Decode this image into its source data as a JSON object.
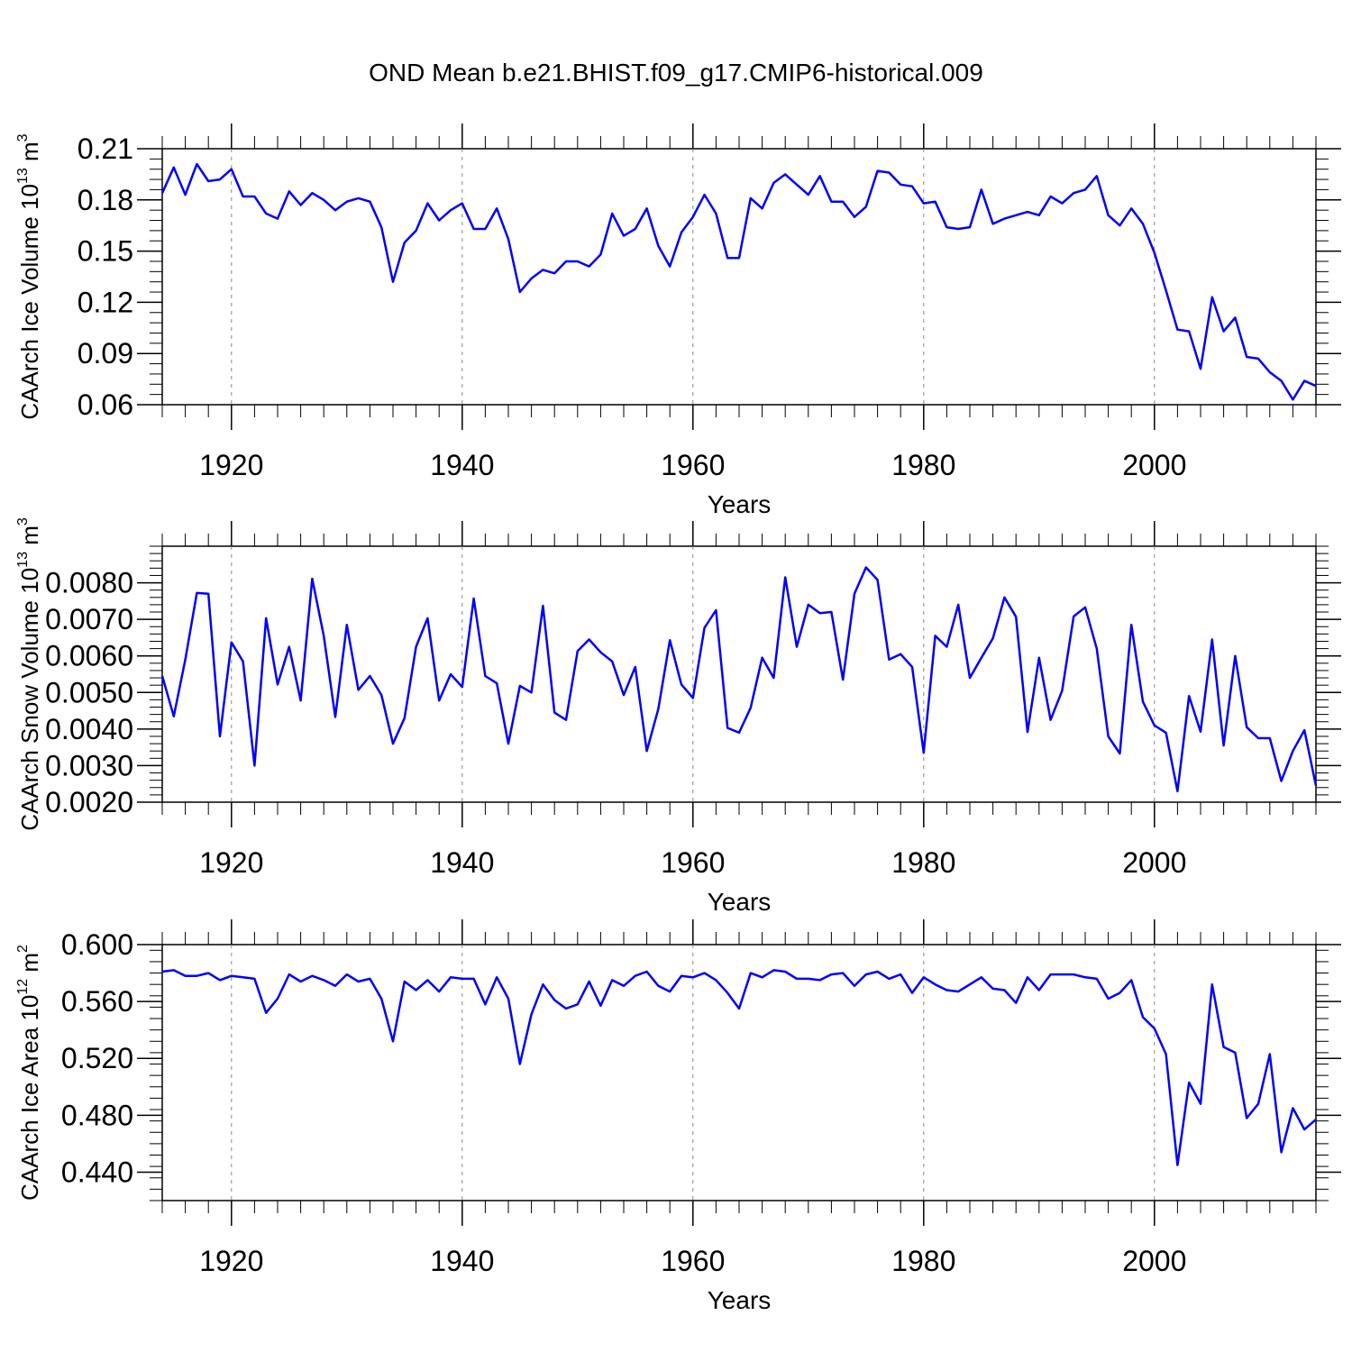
{
  "chart_data": {
    "title": "OND Mean b.e21.BHIST.f09_g17.CMIP6-historical.009",
    "start_year": 1914,
    "xlim": [
      1914,
      2014
    ],
    "x_ticks": [
      "1920",
      "1940",
      "1960",
      "1980",
      "2000"
    ],
    "line_color": "#0000ff",
    "panels": [
      {
        "type": "line",
        "ylabel": "CAArch Ice Volume 10",
        "ylabel_sup": "13",
        "ylabel_unit": "m",
        "ylabel_unit_sup": "3",
        "xlabel": "Years",
        "ylim": [
          0.06,
          0.21
        ],
        "y_ticks": [
          "0.06",
          "0.09",
          "0.12",
          "0.15",
          "0.18",
          "0.21"
        ],
        "values": [
          0.184,
          0.199,
          0.183,
          0.201,
          0.191,
          0.192,
          0.198,
          0.182,
          0.182,
          0.172,
          0.169,
          0.185,
          0.177,
          0.184,
          0.18,
          0.174,
          0.179,
          0.181,
          0.179,
          0.164,
          0.132,
          0.155,
          0.162,
          0.178,
          0.168,
          0.174,
          0.178,
          0.163,
          0.163,
          0.175,
          0.157,
          0.126,
          0.134,
          0.139,
          0.137,
          0.144,
          0.144,
          0.141,
          0.148,
          0.172,
          0.159,
          0.163,
          0.175,
          0.153,
          0.141,
          0.161,
          0.17,
          0.183,
          0.172,
          0.146,
          0.146,
          0.181,
          0.175,
          0.19,
          0.195,
          0.189,
          0.183,
          0.194,
          0.179,
          0.179,
          0.17,
          0.176,
          0.197,
          0.196,
          0.189,
          0.188,
          0.178,
          0.179,
          0.164,
          0.163,
          0.164,
          0.186,
          0.166,
          0.169,
          0.171,
          0.173,
          0.171,
          0.182,
          0.178,
          0.184,
          0.186,
          0.194,
          0.171,
          0.165,
          0.175,
          0.166,
          0.149,
          0.127,
          0.104,
          0.103,
          0.081,
          0.123,
          0.103,
          0.111,
          0.088,
          0.087,
          0.079,
          0.074,
          0.063,
          0.074,
          0.071
        ]
      },
      {
        "type": "line",
        "ylabel": "CAArch Snow Volume 10",
        "ylabel_sup": "13",
        "ylabel_unit": "m",
        "ylabel_unit_sup": "3",
        "xlabel": "Years",
        "ylim": [
          0.002,
          0.009
        ],
        "y_ticks": [
          "0.0020",
          "0.0030",
          "0.0040",
          "0.0050",
          "0.0060",
          "0.0070",
          "0.0080"
        ],
        "values": [
          0.00545,
          0.00435,
          0.0059,
          0.00772,
          0.0077,
          0.0038,
          0.00637,
          0.00585,
          0.003,
          0.00703,
          0.00522,
          0.00625,
          0.00478,
          0.00811,
          0.00655,
          0.00433,
          0.00685,
          0.00507,
          0.00545,
          0.00493,
          0.0036,
          0.0043,
          0.00625,
          0.00703,
          0.00478,
          0.0055,
          0.00515,
          0.00757,
          0.00545,
          0.00525,
          0.0036,
          0.00518,
          0.005,
          0.00737,
          0.00445,
          0.00425,
          0.00613,
          0.00645,
          0.0061,
          0.00585,
          0.00493,
          0.0057,
          0.0034,
          0.00455,
          0.00643,
          0.00522,
          0.00485,
          0.00677,
          0.00725,
          0.00403,
          0.0039,
          0.00458,
          0.00595,
          0.0054,
          0.00815,
          0.00625,
          0.0074,
          0.00717,
          0.0072,
          0.00535,
          0.0077,
          0.00842,
          0.00808,
          0.0059,
          0.00605,
          0.0057,
          0.00335,
          0.00655,
          0.00625,
          0.0074,
          0.0054,
          0.00595,
          0.00648,
          0.0076,
          0.00707,
          0.00392,
          0.00595,
          0.00425,
          0.00505,
          0.00708,
          0.00733,
          0.0062,
          0.0038,
          0.00333,
          0.00685,
          0.00475,
          0.0041,
          0.0039,
          0.0023,
          0.0049,
          0.00393,
          0.00645,
          0.00355,
          0.006,
          0.00405,
          0.00375,
          0.00375,
          0.00258,
          0.0034,
          0.00397,
          0.00245
        ]
      },
      {
        "type": "line",
        "ylabel": "CAArch Ice Area 10",
        "ylabel_sup": "12",
        "ylabel_unit": "m",
        "ylabel_unit_sup": "2",
        "xlabel": "Years",
        "ylim": [
          0.42,
          0.6
        ],
        "y_ticks": [
          "0.440",
          "0.480",
          "0.520",
          "0.560",
          "0.600"
        ],
        "values": [
          0.581,
          0.582,
          0.578,
          0.578,
          0.58,
          0.575,
          0.578,
          0.577,
          0.576,
          0.552,
          0.562,
          0.579,
          0.574,
          0.578,
          0.575,
          0.571,
          0.579,
          0.574,
          0.576,
          0.562,
          0.532,
          0.574,
          0.568,
          0.575,
          0.567,
          0.577,
          0.576,
          0.576,
          0.558,
          0.577,
          0.562,
          0.516,
          0.551,
          0.572,
          0.561,
          0.555,
          0.558,
          0.574,
          0.557,
          0.575,
          0.571,
          0.578,
          0.581,
          0.571,
          0.567,
          0.578,
          0.577,
          0.58,
          0.575,
          0.566,
          0.555,
          0.58,
          0.577,
          0.582,
          0.581,
          0.576,
          0.576,
          0.575,
          0.579,
          0.58,
          0.571,
          0.579,
          0.581,
          0.576,
          0.579,
          0.566,
          0.577,
          0.572,
          0.568,
          0.567,
          0.572,
          0.577,
          0.569,
          0.568,
          0.559,
          0.577,
          0.568,
          0.579,
          0.579,
          0.579,
          0.577,
          0.576,
          0.562,
          0.566,
          0.575,
          0.549,
          0.541,
          0.523,
          0.445,
          0.503,
          0.488,
          0.572,
          0.528,
          0.524,
          0.478,
          0.488,
          0.523,
          0.454,
          0.485,
          0.47,
          0.477
        ]
      }
    ]
  }
}
